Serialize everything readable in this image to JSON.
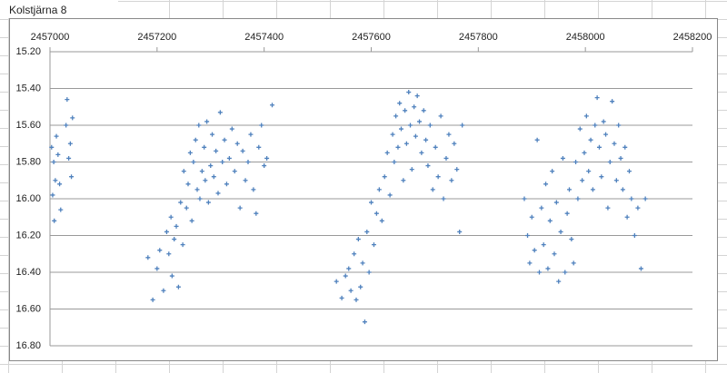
{
  "chart_data": {
    "type": "scatter",
    "title": "Kolstjärna 8",
    "x_axis_position": "top",
    "y_reversed": true,
    "grid": true,
    "marker": "+",
    "xlim": [
      2457000,
      2458200
    ],
    "xticks": [
      2457000,
      2457200,
      2457400,
      2457600,
      2457800,
      2458000,
      2458200
    ],
    "ylim": [
      15.2,
      16.8
    ],
    "yticks": [
      {
        "value": 15.2,
        "label": "15.20"
      },
      {
        "value": 15.4,
        "label": "15.40"
      },
      {
        "value": 15.6,
        "label": "15.60"
      },
      {
        "value": 15.8,
        "label": "15.80"
      },
      {
        "value": 16.0,
        "label": "16.00"
      },
      {
        "value": 16.2,
        "label": "16.20"
      },
      {
        "value": 16.4,
        "label": "16.40"
      },
      {
        "value": 16.6,
        "label": "16.60"
      },
      {
        "value": 16.8,
        "label": "16.80"
      }
    ],
    "series": [
      {
        "color": "#4f81bd",
        "x": [
          2457003,
          2457005,
          2457007,
          2457008,
          2457010,
          2457012,
          2457015,
          2457018,
          2457020,
          2457030,
          2457032,
          2457035,
          2457038,
          2457040,
          2457042,
          2457183,
          2457192,
          2457200,
          2457205,
          2457212,
          2457218,
          2457222,
          2457226,
          2457228,
          2457232,
          2457236,
          2457240,
          2457244,
          2457248,
          2457250,
          2457255,
          2457258,
          2457262,
          2457265,
          2457268,
          2457272,
          2457275,
          2457278,
          2457280,
          2457284,
          2457288,
          2457290,
          2457293,
          2457296,
          2457300,
          2457303,
          2457306,
          2457310,
          2457314,
          2457318,
          2457322,
          2457326,
          2457330,
          2457335,
          2457340,
          2457345,
          2457350,
          2457355,
          2457360,
          2457365,
          2457370,
          2457375,
          2457380,
          2457385,
          2457390,
          2457395,
          2457400,
          2457405,
          2457415,
          2457535,
          2457545,
          2457552,
          2457558,
          2457562,
          2457568,
          2457572,
          2457576,
          2457580,
          2457584,
          2457588,
          2457592,
          2457596,
          2457600,
          2457605,
          2457610,
          2457615,
          2457620,
          2457625,
          2457630,
          2457635,
          2457640,
          2457643,
          2457646,
          2457650,
          2457653,
          2457656,
          2457660,
          2457663,
          2457666,
          2457670,
          2457673,
          2457676,
          2457680,
          2457683,
          2457686,
          2457690,
          2457694,
          2457698,
          2457702,
          2457706,
          2457710,
          2457715,
          2457720,
          2457725,
          2457730,
          2457735,
          2457740,
          2457745,
          2457750,
          2457755,
          2457760,
          2457765,
          2457770,
          2457886,
          2457892,
          2457896,
          2457900,
          2457905,
          2457910,
          2457914,
          2457918,
          2457922,
          2457926,
          2457930,
          2457934,
          2457938,
          2457942,
          2457946,
          2457950,
          2457954,
          2457958,
          2457962,
          2457966,
          2457970,
          2457974,
          2457978,
          2457982,
          2457986,
          2457990,
          2457994,
          2457998,
          2458002,
          2458006,
          2458010,
          2458014,
          2458018,
          2458022,
          2458026,
          2458030,
          2458034,
          2458038,
          2458042,
          2458046,
          2458050,
          2458054,
          2458058,
          2458062,
          2458066,
          2458070,
          2458074,
          2458078,
          2458082,
          2458086,
          2458092,
          2458098,
          2458104,
          2458112
        ],
        "y": [
          15.72,
          15.98,
          15.8,
          16.12,
          15.9,
          15.66,
          15.76,
          15.92,
          16.06,
          15.6,
          15.46,
          15.78,
          15.7,
          15.88,
          15.56,
          16.32,
          16.55,
          16.38,
          16.28,
          16.5,
          16.18,
          16.3,
          16.1,
          16.42,
          16.22,
          16.15,
          16.48,
          16.02,
          16.25,
          15.85,
          16.05,
          15.92,
          15.75,
          16.12,
          15.8,
          15.68,
          15.95,
          15.6,
          16.0,
          15.85,
          15.72,
          15.9,
          15.58,
          16.02,
          15.82,
          15.65,
          15.88,
          15.74,
          15.97,
          15.53,
          15.8,
          15.68,
          15.92,
          15.78,
          15.62,
          15.85,
          15.7,
          16.05,
          15.74,
          15.9,
          15.8,
          15.65,
          15.95,
          16.08,
          15.72,
          15.6,
          15.82,
          15.78,
          15.49,
          16.45,
          16.54,
          16.42,
          16.38,
          16.5,
          16.3,
          16.55,
          16.22,
          16.48,
          16.35,
          16.67,
          16.18,
          16.4,
          16.02,
          16.25,
          16.08,
          15.95,
          16.12,
          15.88,
          15.75,
          15.98,
          15.65,
          15.8,
          15.55,
          15.72,
          15.48,
          15.62,
          15.9,
          15.52,
          15.7,
          15.42,
          15.6,
          15.84,
          15.5,
          15.66,
          15.44,
          15.58,
          15.75,
          15.52,
          15.68,
          15.82,
          15.6,
          15.95,
          15.72,
          15.88,
          15.55,
          16.0,
          15.78,
          15.65,
          15.9,
          15.7,
          15.84,
          16.18,
          15.6,
          16.0,
          16.2,
          16.35,
          16.1,
          16.28,
          15.68,
          16.4,
          16.05,
          16.25,
          15.92,
          16.38,
          16.12,
          15.85,
          16.3,
          16.02,
          16.45,
          16.18,
          15.78,
          16.4,
          16.08,
          15.95,
          16.22,
          16.35,
          15.8,
          16.0,
          15.62,
          15.9,
          15.75,
          15.55,
          15.85,
          15.68,
          15.95,
          15.6,
          15.45,
          15.72,
          15.88,
          15.58,
          15.65,
          16.05,
          15.8,
          15.47,
          15.7,
          15.9,
          15.6,
          15.78,
          15.95,
          15.72,
          16.1,
          15.85,
          16.0,
          16.2,
          16.05,
          16.38,
          16.0
        ]
      }
    ]
  }
}
